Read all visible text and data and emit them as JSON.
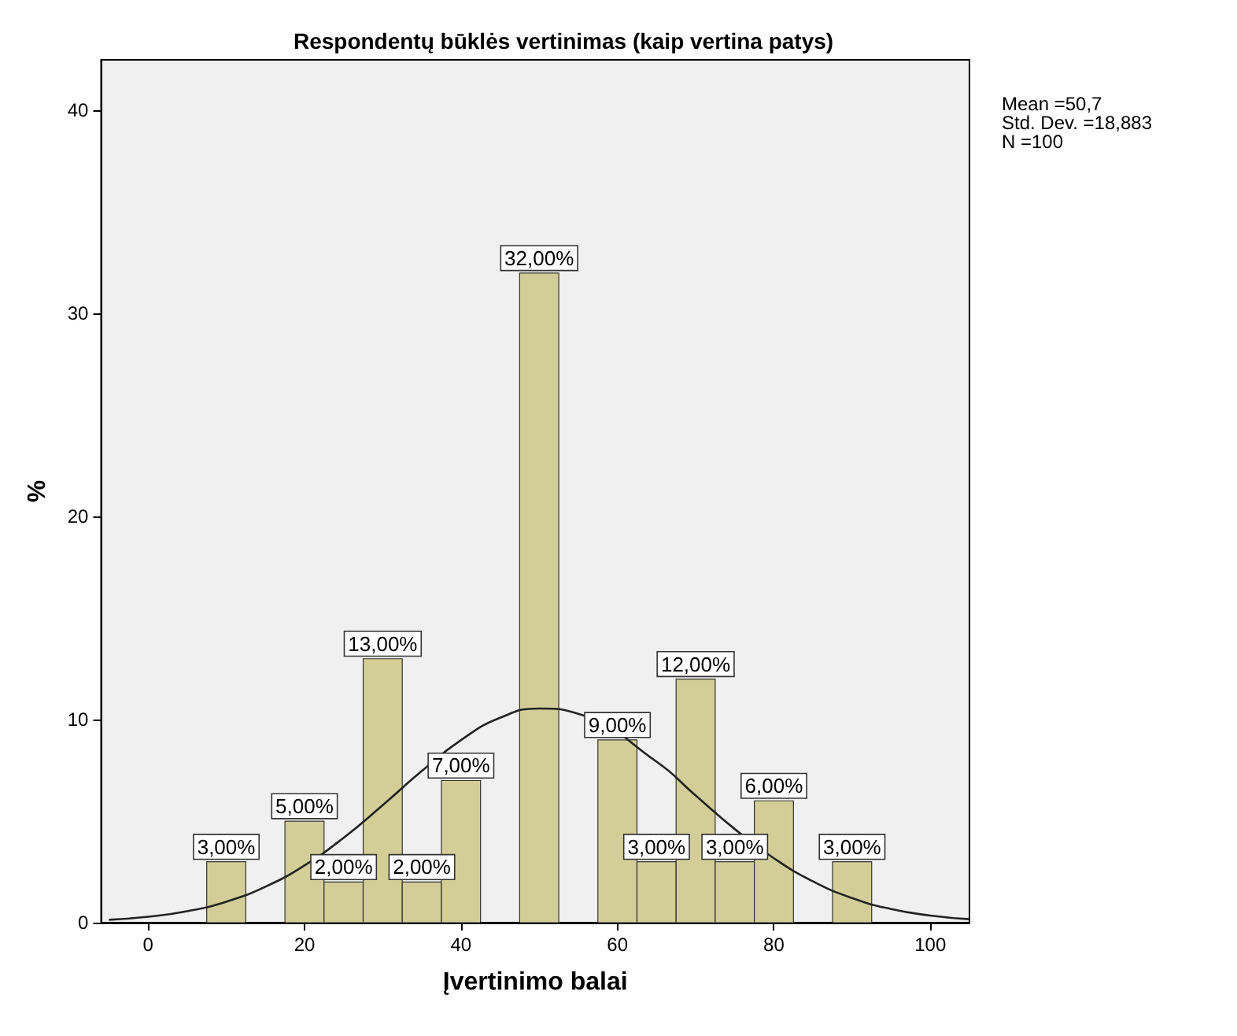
{
  "chart_data": {
    "type": "histogram",
    "title": "Respondentų būklės vertinimas (kaip vertina patys)",
    "xlabel": "Įvertinimo balai",
    "ylabel": "%",
    "bins": [
      7.5,
      12.5,
      17.5,
      22.5,
      27.5,
      32.5,
      37.5,
      42.5,
      47.5,
      52.5,
      57.5,
      62.5,
      67.5,
      72.5,
      77.5,
      82.5,
      87.5,
      92.5
    ],
    "values": [
      3,
      0,
      5,
      2,
      13,
      2,
      7,
      0,
      32,
      0,
      9,
      3,
      12,
      3,
      6,
      0,
      3
    ],
    "value_labels": [
      "3,00%",
      null,
      "5,00%",
      "2,00%",
      "13,00%",
      "2,00%",
      "7,00%",
      null,
      "32,00%",
      null,
      "9,00%",
      "3,00%",
      "12,00%",
      "3,00%",
      "6,00%",
      null,
      "3,00%"
    ],
    "color": "#d3ce98",
    "series": [
      {
        "type": "line",
        "color": "#222222",
        "x": [
          -5,
          0,
          5,
          10,
          15,
          20,
          25,
          30,
          35,
          40,
          45,
          50,
          55,
          65,
          70,
          75,
          80,
          85,
          90,
          95,
          100,
          105
        ],
        "values": [
          0.14,
          0.29,
          0.56,
          1.03,
          1.77,
          2.82,
          4.18,
          5.79,
          7.47,
          8.99,
          10.09,
          10.55,
          10.29,
          7.93,
          6.26,
          4.61,
          3.17,
          2.03,
          1.21,
          0.67,
          0.35,
          0.17
        ]
      }
    ],
    "xlim": [
      -6,
      105
    ],
    "xticks": [
      0,
      20,
      40,
      60,
      80,
      100
    ],
    "ylim": [
      0,
      42.5
    ],
    "yticks": [
      0,
      10,
      20,
      30,
      40
    ],
    "grid": false,
    "marker": "none",
    "annotations": [
      "Mean =50,7",
      "Std. Dev. =18,883",
      "N =100"
    ]
  }
}
